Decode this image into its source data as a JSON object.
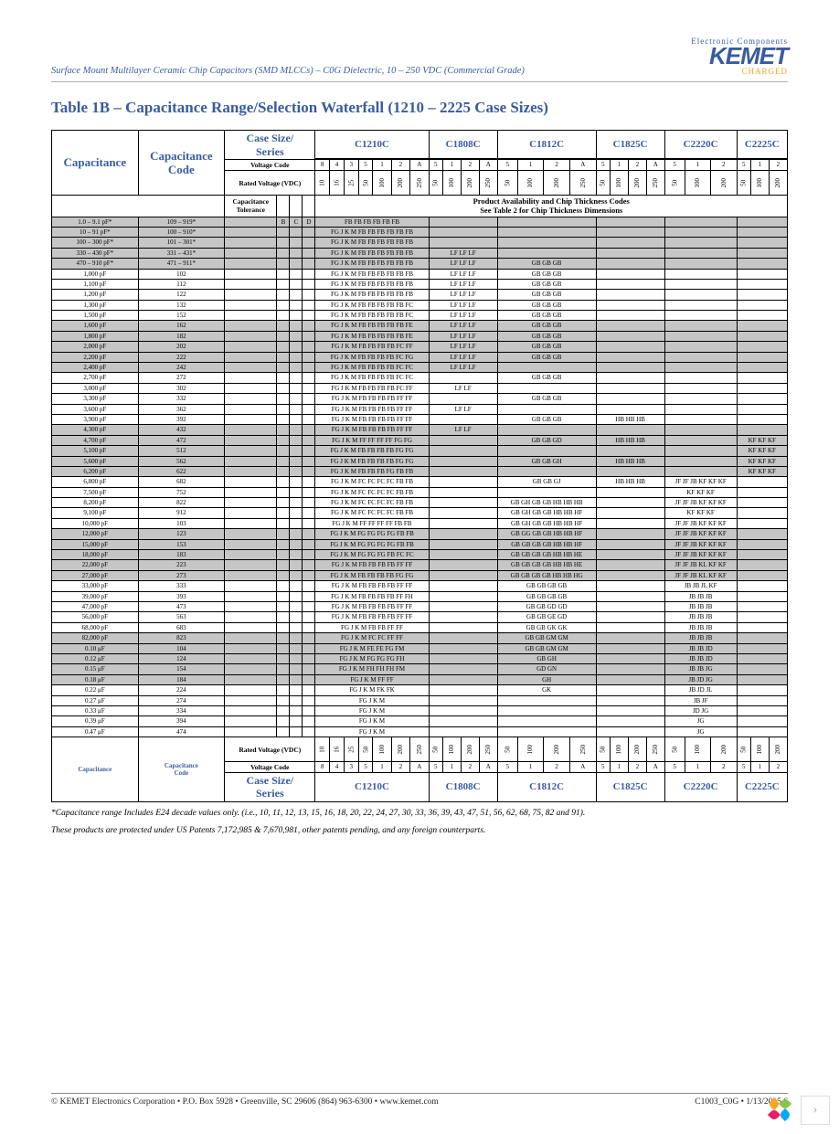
{
  "header_text": "Surface Mount Multilayer Ceramic Chip Capacitors (SMD MLCCs) – C0G Dielectric, 10 – 250 VDC (Commercial Grade)",
  "logo": {
    "top": "Electronic Components",
    "main": "KEMET",
    "sub": "CHARGED"
  },
  "title": "Table 1B – Capacitance Range/Selection Waterfall (1210 – 2225 Case Sizes)",
  "labels": {
    "case_series": "Case Size/\nSeries",
    "capacitance": "Capacitance",
    "cap_code": "Capacitance\nCode",
    "voltage_code": "Voltage Code",
    "rated_voltage": "Rated Voltage (VDC)",
    "cap_tolerance": "Capacitance\nTolerance",
    "prod_avail": "Product Availability and Chip Thickness Codes\nSee Table 2 for Chip Thickness Dimensions"
  },
  "series": [
    "C1210C",
    "C1808C",
    "C1812C",
    "C1825C",
    "C2220C",
    "C2225C"
  ],
  "voltage_codes": {
    "C1210C": [
      "8",
      "4",
      "3",
      "5",
      "1",
      "2",
      "A"
    ],
    "C1808C": [
      "5",
      "1",
      "2",
      "A"
    ],
    "C1812C": [
      "5",
      "1",
      "2",
      "A"
    ],
    "C1825C": [
      "5",
      "1",
      "2",
      "A"
    ],
    "C2220C": [
      "5",
      "1",
      "2"
    ],
    "C2225C": [
      "5",
      "1",
      "2"
    ]
  },
  "rated_voltages": {
    "C1210C": [
      "10",
      "16",
      "25",
      "50",
      "100",
      "200",
      "250"
    ],
    "C1808C": [
      "50",
      "100",
      "200",
      "250"
    ],
    "C1812C": [
      "50",
      "100",
      "200",
      "250"
    ],
    "C1825C": [
      "50",
      "100",
      "200",
      "250"
    ],
    "C2220C": [
      "50",
      "100",
      "200"
    ],
    "C2225C": [
      "50",
      "100",
      "200"
    ]
  },
  "tol_cols": [
    "B",
    "C",
    "D"
  ],
  "rows": [
    {
      "s": 0,
      "cap": "1.0 – 9.1 pF*",
      "code": "109 – 919*",
      "tol": "BCD",
      "cells": {
        "C1210C": "FB FB FB FB FB FB"
      }
    },
    {
      "s": 0,
      "cap": "10 – 91 pF*",
      "code": "100 – 910*",
      "cells": {
        "C1210C": "FG J K M FB FB FB FB FB FB"
      }
    },
    {
      "s": 0,
      "cap": "100 – 300 pF*",
      "code": "101 – 301*",
      "cells": {
        "C1210C": "FG J K M FB FB FB FB FB FB"
      }
    },
    {
      "s": 0,
      "cap": "330 – 430 pF*",
      "code": "331 – 431*",
      "cells": {
        "C1210C": "FG J K M FB FB FB FB FB FB",
        "C1808C": "LF LF LF"
      }
    },
    {
      "s": 0,
      "cap": "470 – 910 pF*",
      "code": "471 – 911*",
      "cells": {
        "C1210C": "FG J K M FB FB FB FB FB FB",
        "C1808C": "LF LF LF",
        "C1812C": "GB GB GB"
      }
    },
    {
      "s": 1,
      "cap": "1,000 pF",
      "code": "102",
      "cells": {
        "C1210C": "FG J K M FB FB FB FB FB FB",
        "C1808C": "LF LF LF",
        "C1812C": "GB GB GB"
      }
    },
    {
      "s": 1,
      "cap": "1,100 pF",
      "code": "112",
      "cells": {
        "C1210C": "FG J K M FB FB FB FB FB FB",
        "C1808C": "LF LF LF",
        "C1812C": "GB GB GB"
      }
    },
    {
      "s": 1,
      "cap": "1,200 pF",
      "code": "122",
      "cells": {
        "C1210C": "FG J K M FB FB FB FB FB FB",
        "C1808C": "LF LF LF",
        "C1812C": "GB GB GB"
      }
    },
    {
      "s": 1,
      "cap": "1,300 pF",
      "code": "132",
      "cells": {
        "C1210C": "FG J K M FB FB FB FB FB FC",
        "C1808C": "LF LF LF",
        "C1812C": "GB GB GB"
      }
    },
    {
      "s": 1,
      "cap": "1,500 pF",
      "code": "152",
      "cells": {
        "C1210C": "FG J K M FB FB FB FB FB FC",
        "C1808C": "LF LF LF",
        "C1812C": "GB GB GB"
      }
    },
    {
      "s": 0,
      "cap": "1,600 pF",
      "code": "162",
      "cells": {
        "C1210C": "FG J K M FB FB FB FB FB FE",
        "C1808C": "LF LF LF",
        "C1812C": "GB GB GB"
      }
    },
    {
      "s": 0,
      "cap": "1,800 pF",
      "code": "182",
      "cells": {
        "C1210C": "FG J K M FB FB FB FB FB FE",
        "C1808C": "LF LF LF",
        "C1812C": "GB GB GB"
      }
    },
    {
      "s": 0,
      "cap": "2,000 pF",
      "code": "202",
      "cells": {
        "C1210C": "FG J K M FB FB FB FB FC FF",
        "C1808C": "LF LF LF",
        "C1812C": "GB GB GB"
      }
    },
    {
      "s": 0,
      "cap": "2,200 pF",
      "code": "222",
      "cells": {
        "C1210C": "FG J K M FB FB FB FB FC FG",
        "C1808C": "LF LF LF",
        "C1812C": "GB GB GB"
      }
    },
    {
      "s": 0,
      "cap": "2,400 pF",
      "code": "242",
      "cells": {
        "C1210C": "FG J K M FB FB FB FB FC FC",
        "C1808C": "LF LF LF"
      }
    },
    {
      "s": 1,
      "cap": "2,700 pF",
      "code": "272",
      "cells": {
        "C1210C": "FG J K M FB FB FB FB FC FC",
        "C1812C": "GB GB GB"
      }
    },
    {
      "s": 1,
      "cap": "3,000 pF",
      "code": "302",
      "cells": {
        "C1210C": "FG J K M FB FB FB FB FC FF",
        "C1808C": "LF LF"
      }
    },
    {
      "s": 1,
      "cap": "3,300 pF",
      "code": "332",
      "cells": {
        "C1210C": "FG J K M FB FB FB FB FF FF",
        "C1812C": "GB GB GB"
      }
    },
    {
      "s": 1,
      "cap": "3,600 pF",
      "code": "362",
      "cells": {
        "C1210C": "FG J K M FB FB FB FB FF FF",
        "C1808C": "LF LF"
      }
    },
    {
      "s": 1,
      "cap": "3,900 pF",
      "code": "392",
      "cells": {
        "C1210C": "FG J K M FB FB FB FB FF FF",
        "C1812C": "GB GB GB",
        "C1825C": "HB HB HB"
      }
    },
    {
      "s": 0,
      "cap": "4,300 pF",
      "code": "432",
      "cells": {
        "C1210C": "FG J K M FB FB FB FB FF FF",
        "C1808C": "LF LF"
      }
    },
    {
      "s": 0,
      "cap": "4,700 pF",
      "code": "472",
      "cells": {
        "C1210C": "FG J K M FF FF FF FF FG FG",
        "C1812C": "GB GB GD",
        "C1825C": "HB HB HB",
        "C2225C": "KF KF KF"
      }
    },
    {
      "s": 0,
      "cap": "5,100 pF",
      "code": "512",
      "cells": {
        "C1210C": "FG J K M FB FB FB FB FG FG",
        "C2225C": "KF KF KF"
      }
    },
    {
      "s": 0,
      "cap": "5,600 pF",
      "code": "562",
      "cells": {
        "C1210C": "FG J K M FB FB FB FB FG FG",
        "C1812C": "GB GB GH",
        "C1825C": "HB HB HB",
        "C2225C": "KF KF KF"
      }
    },
    {
      "s": 0,
      "cap": "6,200 pF",
      "code": "622",
      "cells": {
        "C1210C": "FG J K M FB FB FB FG FB FB",
        "C2225C": "KF KF KF"
      }
    },
    {
      "s": 1,
      "cap": "6,800 pF",
      "code": "682",
      "cells": {
        "C1210C": "FG J K M FC FC FC FC FB FB",
        "C1812C": "GB GB GJ",
        "C1825C": "HB HB HB",
        "C2220C": "JF JF JB KF KF KF"
      }
    },
    {
      "s": 1,
      "cap": "7,500 pF",
      "code": "752",
      "cells": {
        "C1210C": "FG J K M FC FC FC FC FB FB",
        "C2220C": "KF KF KF"
      }
    },
    {
      "s": 1,
      "cap": "8,200 pF",
      "code": "822",
      "cells": {
        "C1210C": "FG J K M FC FC FC FC FB FB",
        "C1812C": "GB GH GB GB HB HB HB",
        "C2220C": "JF JF JB KF KF KF"
      }
    },
    {
      "s": 1,
      "cap": "9,100 pF",
      "code": "912",
      "cells": {
        "C1210C": "FG J K M FC FC FC FC FB FB",
        "C1812C": "GB GH GB GB HB HB HF",
        "C2220C": "KF KF KF"
      }
    },
    {
      "s": 1,
      "cap": "10,000 pF",
      "code": "103",
      "cells": {
        "C1210C": "FG J K M FF FF FF FF FB FB",
        "C1812C": "GB GH GB GB HB HB HF",
        "C2220C": "JF JF JB KF KF KF"
      }
    },
    {
      "s": 0,
      "cap": "12,000 pF",
      "code": "123",
      "cells": {
        "C1210C": "FG J K M FG FG FG FG FB FB",
        "C1812C": "GB GG GB GB HB HB HF",
        "C2220C": "JF JF JB KF KF KF"
      }
    },
    {
      "s": 0,
      "cap": "15,000 pF",
      "code": "153",
      "cells": {
        "C1210C": "FG J K M FG FG FG FG FB FB",
        "C1812C": "GB GB GB GB HB HB HF",
        "C2220C": "JF JF JB KF KF KF"
      }
    },
    {
      "s": 0,
      "cap": "18,000 pF",
      "code": "183",
      "cells": {
        "C1210C": "FG J K M FG FG FG FB FC FC",
        "C1812C": "GB GB GB GB HB HB HE",
        "C2220C": "JF JF JB KF KF KF"
      }
    },
    {
      "s": 0,
      "cap": "22,000 pF",
      "code": "223",
      "cells": {
        "C1210C": "FG J K M FB FB FB FB FF FF",
        "C1812C": "GB GB GB GB HB HB HE",
        "C2220C": "JF JF JB KL KF KF"
      }
    },
    {
      "s": 0,
      "cap": "27,000 pF",
      "code": "273",
      "cells": {
        "C1210C": "FG J K M FB FB FB FB FG FG",
        "C1812C": "GB GB GB GB HB HB HG",
        "C2220C": "JF JF JB KL KF KF"
      }
    },
    {
      "s": 1,
      "cap": "33,000 pF",
      "code": "333",
      "cells": {
        "C1210C": "FG J K M FB FB FB FB FF FF",
        "C1812C": "GB GB GB GB",
        "C2220C": "JB JB JL KF"
      }
    },
    {
      "s": 1,
      "cap": "39,000 pF",
      "code": "393",
      "cells": {
        "C1210C": "FG J K M FB FB FB FB FF FH",
        "C1812C": "GB GB GB GB",
        "C2220C": "JB JB JB"
      }
    },
    {
      "s": 1,
      "cap": "47,000 pF",
      "code": "473",
      "cells": {
        "C1210C": "FG J K M FB FB FB FB FF FF",
        "C1812C": "GB GB GD GD",
        "C2220C": "JB JB JB"
      }
    },
    {
      "s": 1,
      "cap": "56,000 pF",
      "code": "563",
      "cells": {
        "C1210C": "FG J K M FB FB FB FB FF FF",
        "C1812C": "GB GB GE GD",
        "C2220C": "JB JB JB"
      }
    },
    {
      "s": 1,
      "cap": "68,000 pF",
      "code": "683",
      "cells": {
        "C1210C": "FG J K M FB FB FF FF",
        "C1812C": "GB GB GK GK",
        "C2220C": "JB JB JB"
      }
    },
    {
      "s": 0,
      "cap": "82,000 pF",
      "code": "823",
      "cells": {
        "C1210C": "FG J K M FC FC FF FF",
        "C1812C": "GB GB GM GM",
        "C2220C": "JB JB JB"
      }
    },
    {
      "s": 0,
      "cap": "0.10 μF",
      "code": "104",
      "cells": {
        "C1210C": "FG J K M FE FE FG FM",
        "C1812C": "GB GB GM GM",
        "C2220C": "JB JB JD"
      }
    },
    {
      "s": 0,
      "cap": "0.12 μF",
      "code": "124",
      "cells": {
        "C1210C": "FG J K M FG FG FG FH",
        "C1812C": "GB GH",
        "C2220C": "JB JB JD"
      }
    },
    {
      "s": 0,
      "cap": "0.15 μF",
      "code": "154",
      "cells": {
        "C1210C": "FG J K M FH FH FH FM",
        "C1812C": "GD GN",
        "C2220C": "JB JB JG"
      }
    },
    {
      "s": 0,
      "cap": "0.18 μF",
      "code": "184",
      "cells": {
        "C1210C": "FG J K M FF FF",
        "C1812C": "GH",
        "C2220C": "JB JD JG"
      }
    },
    {
      "s": 1,
      "cap": "0.22 μF",
      "code": "224",
      "cells": {
        "C1210C": "FG J K M FK FK",
        "C1812C": "GK",
        "C2220C": "JB JD JL"
      }
    },
    {
      "s": 1,
      "cap": "0.27 μF",
      "code": "274",
      "cells": {
        "C1210C": "FG J K M",
        "C2220C": "JB JF"
      }
    },
    {
      "s": 1,
      "cap": "0.33 μF",
      "code": "334",
      "cells": {
        "C1210C": "FG J K M",
        "C2220C": "JD JG"
      }
    },
    {
      "s": 1,
      "cap": "0.39 μF",
      "code": "394",
      "cells": {
        "C1210C": "FG J K M",
        "C2220C": "JG"
      }
    },
    {
      "s": 1,
      "cap": "0.47 μF",
      "code": "474",
      "cells": {
        "C1210C": "FG J K M",
        "C2220C": "JG"
      }
    }
  ],
  "footnotes": [
    "*Capacitance range Includes E24 decade values only. (i.e., 10, 11, 12, 13, 15, 16, 18, 20, 22, 24, 27, 30, 33, 36, 39, 43, 47, 51, 56, 62, 68, 75, 82 and 91).",
    "These products are protected under US Patents 7,172,985 & 7,670,981, other patents pending, and any foreign counterparts."
  ],
  "footer": {
    "left": "© KEMET Electronics Corporation • P.O. Box 5928 • Greenville, SC 29606 (864) 963-6300 • www.kemet.com",
    "right": "C1003_C0G • 1/13/2015     6"
  }
}
